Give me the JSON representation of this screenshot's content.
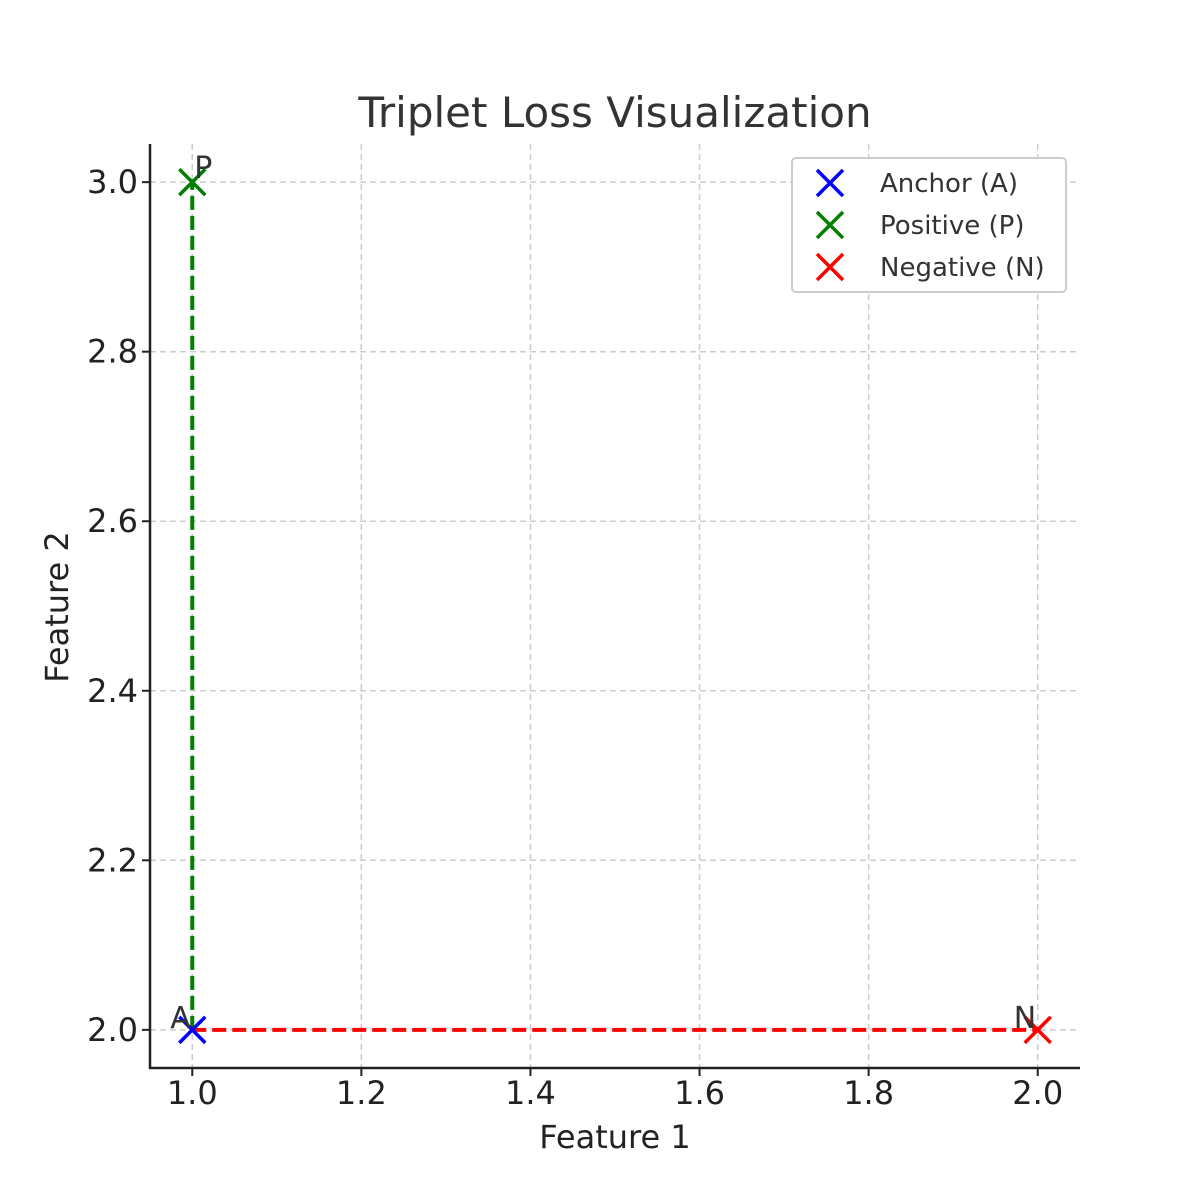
{
  "chart_data": {
    "type": "scatter",
    "title": "Triplet Loss Visualization",
    "xlabel": "Feature 1",
    "ylabel": "Feature 2",
    "xlim": [
      0.95,
      2.05
    ],
    "ylim": [
      1.955,
      3.045
    ],
    "xticks": [
      1.0,
      1.2,
      1.4,
      1.6,
      1.8,
      2.0
    ],
    "yticks": [
      2.0,
      2.2,
      2.4,
      2.6,
      2.8,
      3.0
    ],
    "xtick_labels": [
      "1.0",
      "1.2",
      "1.4",
      "1.6",
      "1.8",
      "2.0"
    ],
    "ytick_labels": [
      "2.0",
      "2.2",
      "2.4",
      "2.6",
      "2.8",
      "3.0"
    ],
    "grid": true,
    "legend_position": "top-right",
    "series": [
      {
        "name": "Anchor (A)",
        "label": "A",
        "x": 1.0,
        "y": 2.0,
        "color": "#0000ff",
        "marker": "x"
      },
      {
        "name": "Positive (P)",
        "label": "P",
        "x": 1.0,
        "y": 3.0,
        "color": "#008000",
        "marker": "x"
      },
      {
        "name": "Negative (N)",
        "label": "N",
        "x": 2.0,
        "y": 2.0,
        "color": "#ff0000",
        "marker": "x"
      }
    ],
    "lines": [
      {
        "from": [
          1.0,
          2.0
        ],
        "to": [
          1.0,
          3.0
        ],
        "color": "#008000",
        "style": "dashed"
      },
      {
        "from": [
          1.0,
          2.0
        ],
        "to": [
          2.0,
          2.0
        ],
        "color": "#ff0000",
        "style": "dashed"
      }
    ]
  }
}
